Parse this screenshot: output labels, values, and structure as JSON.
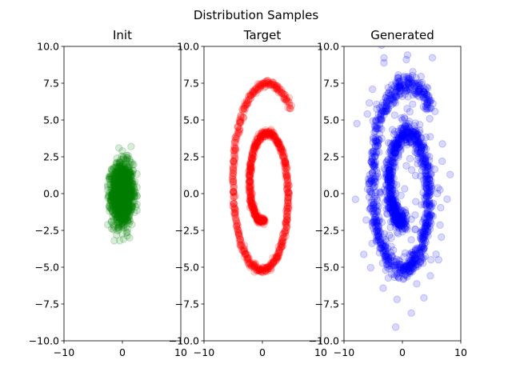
{
  "figure": {
    "suptitle": "Distribution Samples"
  },
  "chart_data": [
    {
      "type": "scatter",
      "title": "Init",
      "xlabel": "",
      "ylabel": "",
      "xlim": [
        -10,
        10
      ],
      "ylim": [
        -10,
        10
      ],
      "xticks": [
        "−10",
        "0",
        "10"
      ],
      "yticks": [
        "−10.0",
        "−7.5",
        "−5.0",
        "−2.5",
        "0.0",
        "2.5",
        "5.0",
        "7.5",
        "10.0"
      ],
      "grid": false,
      "color": "#008000",
      "alpha": 0.15,
      "distribution": "gaussian",
      "center": [
        0,
        0
      ],
      "std": [
        0.9,
        1.0
      ],
      "x_range": [
        -2.5,
        2.5
      ],
      "y_range": [
        -3.2,
        3.2
      ],
      "series": [
        {
          "name": "",
          "x": [
            -0.8,
            0.4,
            1.2,
            -1.5,
            0.0,
            2.0,
            -2.2,
            0.9,
            -0.3,
            1.6,
            -1.0,
            0.5,
            0.2,
            -0.6,
            1.1,
            -1.9,
            0.7,
            -0.2,
            2.3,
            -2.5
          ],
          "y": [
            0.3,
            -1.1,
            1.8,
            -0.5,
            2.9,
            0.4,
            -1.2,
            -2.4,
            1.3,
            2.1,
            -2.8,
            0.0,
            -3.1,
            3.1,
            -0.7,
            1.0,
            2.6,
            -1.9,
            -0.9,
            0.6
          ]
        }
      ]
    },
    {
      "type": "scatter",
      "title": "Target",
      "xlabel": "",
      "ylabel": "",
      "xlim": [
        -10,
        10
      ],
      "ylim": [
        -10,
        10
      ],
      "xticks": [
        "−10",
        "0",
        "10"
      ],
      "yticks": [
        "−10.0",
        "−7.5",
        "−5.0",
        "−2.5",
        "0.0",
        "2.5",
        "5.0",
        "7.5",
        "10.0"
      ],
      "grid": false,
      "color": "#ff0000",
      "alpha": 0.15,
      "distribution": "spiral",
      "spiral_start": [
        0.5,
        -2.4
      ],
      "spiral_end": [
        0.5,
        7.0
      ],
      "series": [
        {
          "name": "",
          "x": [
            0.5,
            0.0,
            -4.5,
            0.0,
            5.0,
            0.5,
            -5.0,
            0.0,
            6.5,
            0.5
          ],
          "y": [
            -2.4,
            -5.5,
            0.0,
            4.0,
            0.0,
            -5.5,
            -2.0,
            4.0,
            0.0,
            7.0
          ]
        }
      ]
    },
    {
      "type": "scatter",
      "title": "Generated",
      "xlabel": "",
      "ylabel": "",
      "xlim": [
        -10,
        10
      ],
      "ylim": [
        -10,
        10
      ],
      "xticks": [
        "−10",
        "0",
        "10"
      ],
      "yticks": [
        "−10.0",
        "−7.5",
        "−5.0",
        "−2.5",
        "0.0",
        "2.5",
        "5.0",
        "7.5",
        "10.0"
      ],
      "grid": false,
      "color": "#0000ff",
      "alpha": 0.15,
      "distribution": "noisy-spiral",
      "spiral_start": [
        0.5,
        -1.3
      ],
      "spiral_end": [
        0.0,
        6.6
      ],
      "series": [
        {
          "name": "",
          "x": [
            0.5,
            -3.8,
            0.0,
            5.0,
            0.5,
            -5.5,
            0.0,
            6.0,
            0.0,
            -2.0,
            3.5,
            -5.0,
            6.2
          ],
          "y": [
            -1.3,
            0.0,
            4.2,
            0.5,
            -5.5,
            -1.0,
            5.0,
            0.0,
            6.6,
            1.0,
            -3.0,
            3.5,
            -4.5
          ]
        }
      ]
    }
  ]
}
